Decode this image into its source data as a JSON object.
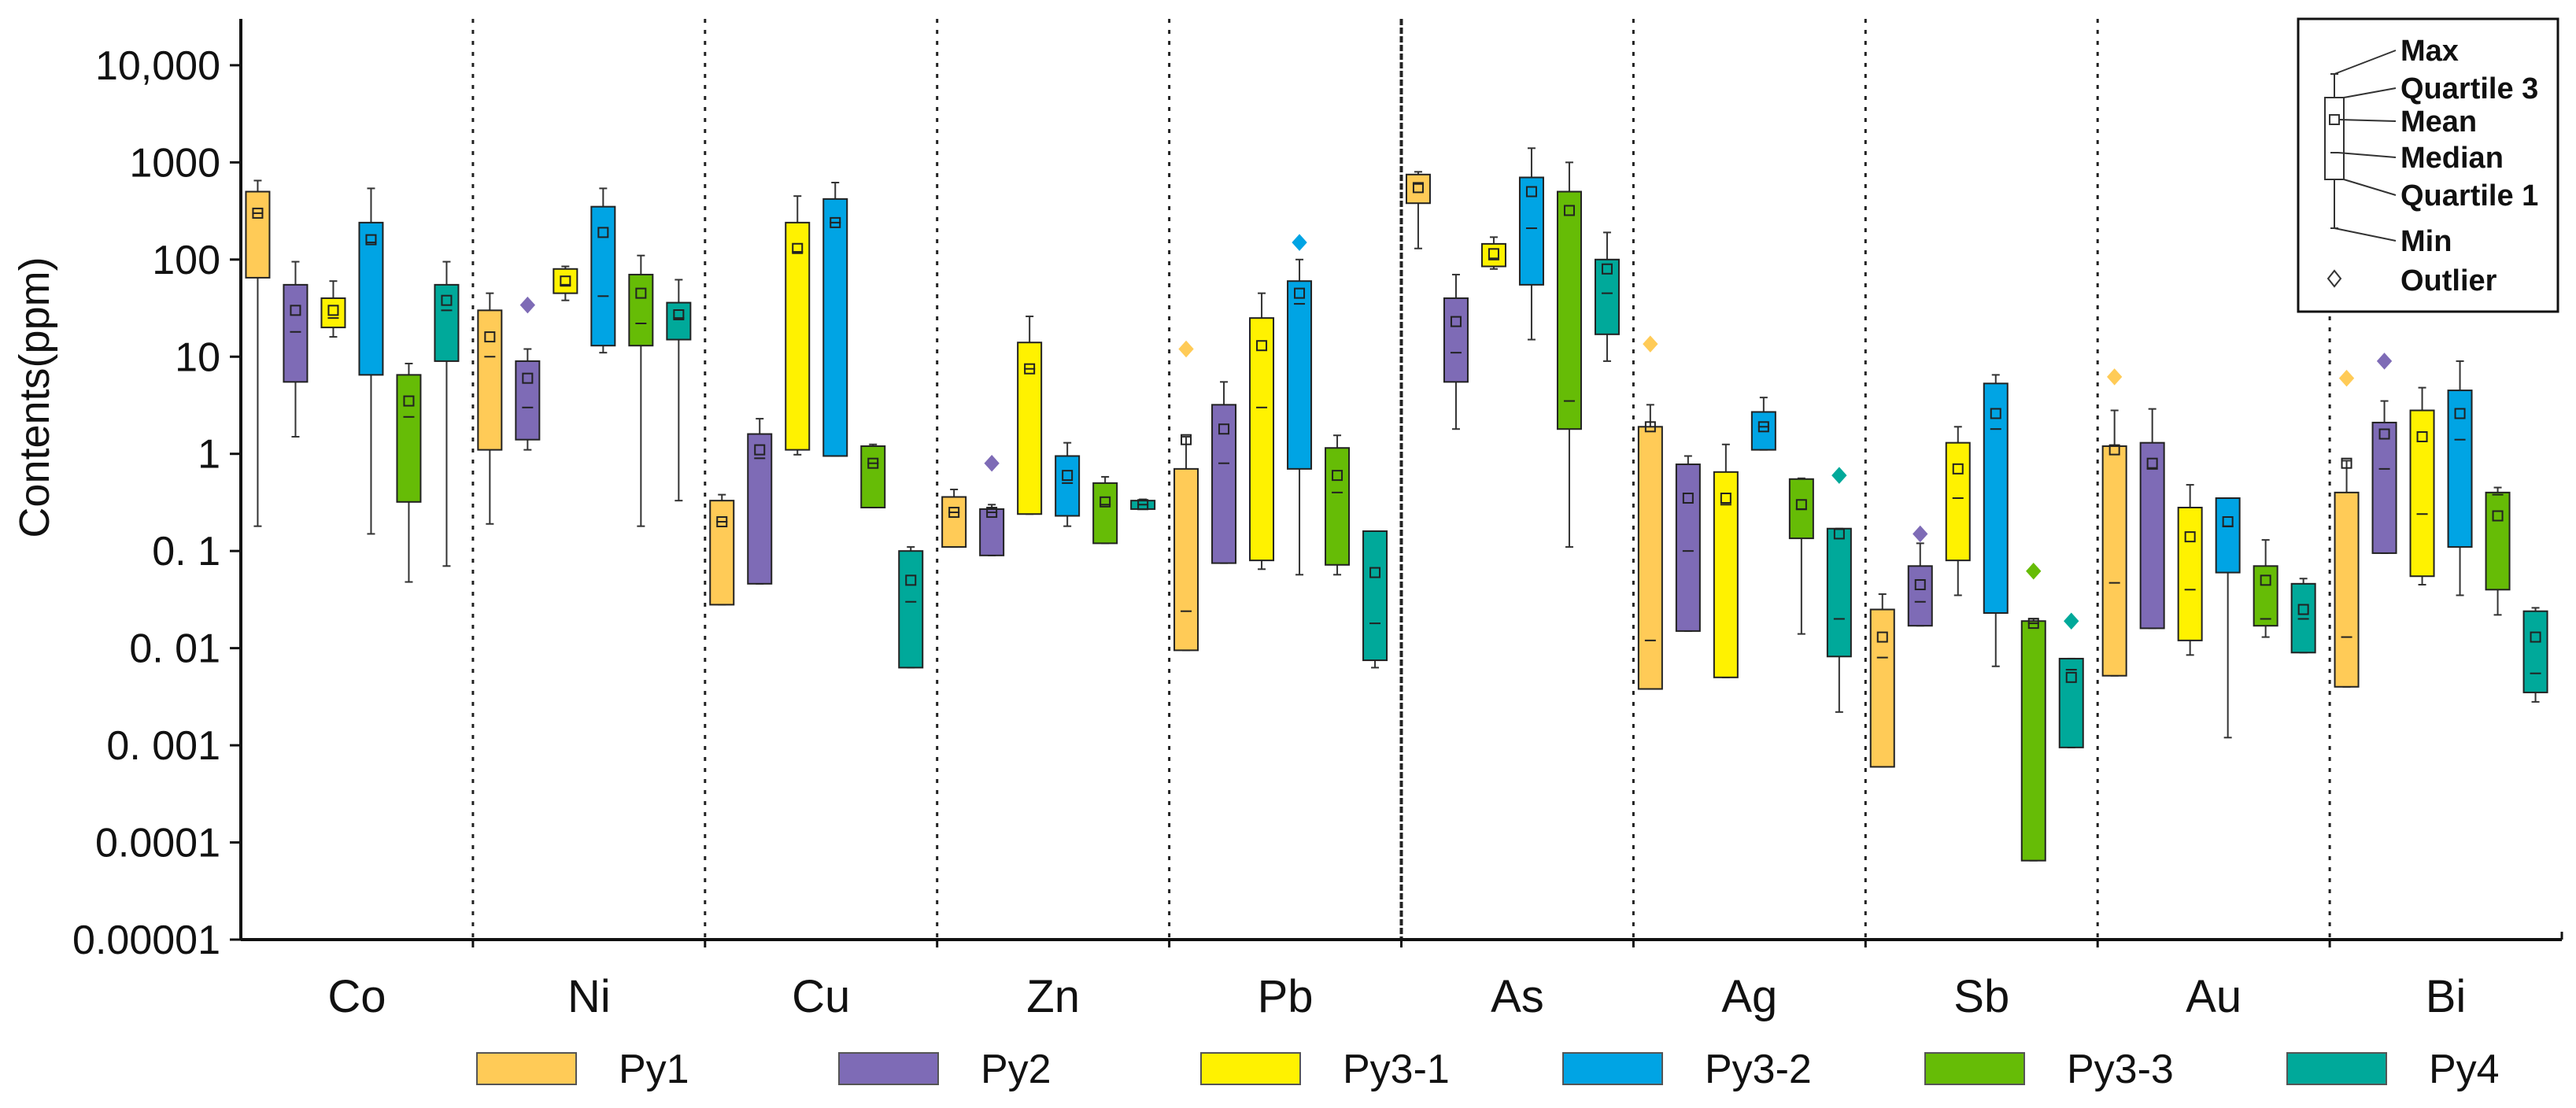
{
  "chart_data": {
    "type": "box",
    "ylabel": "Contents(ppm)",
    "yscale": "log",
    "ylim": [
      1e-05,
      30000
    ],
    "yticks": [
      {
        "value": 10000,
        "label": "10,000"
      },
      {
        "value": 1000,
        "label": "1000"
      },
      {
        "value": 100,
        "label": "100"
      },
      {
        "value": 10,
        "label": "10"
      },
      {
        "value": 1,
        "label": "1"
      },
      {
        "value": 0.1,
        "label": "0. 1"
      },
      {
        "value": 0.01,
        "label": "0. 01"
      },
      {
        "value": 0.001,
        "label": "0. 001"
      },
      {
        "value": 0.0001,
        "label": "0.0001"
      },
      {
        "value": 1e-05,
        "label": "0.00001"
      }
    ],
    "elements": [
      "Co",
      "Ni",
      "Cu",
      "Zn",
      "Pb",
      "As",
      "Ag",
      "Sb",
      "Au",
      "Bi"
    ],
    "series": [
      {
        "name": "Py1",
        "color": "#FFCB57"
      },
      {
        "name": "Py2",
        "color": "#7E6BB6"
      },
      {
        "name": "Py3-1",
        "color": "#FFF200"
      },
      {
        "name": "Py3-2",
        "color": "#00A4E4"
      },
      {
        "name": "Py3-3",
        "color": "#66BC06"
      },
      {
        "name": "Py4",
        "color": "#00A99A"
      }
    ],
    "groups": [
      {
        "element": "Co",
        "boxes": [
          {
            "series": "Py1",
            "min": 0.18,
            "q1": 65,
            "median": 300,
            "q3": 500,
            "max": 650,
            "mean": 300
          },
          {
            "series": "Py2",
            "min": 1.5,
            "q1": 5.5,
            "median": 18,
            "q3": 55,
            "max": 95,
            "mean": 30
          },
          {
            "series": "Py3-1",
            "min": 16,
            "q1": 20,
            "median": 25,
            "q3": 40,
            "max": 60,
            "mean": 30
          },
          {
            "series": "Py3-2",
            "min": 0.15,
            "q1": 6.5,
            "median": 150,
            "q3": 240,
            "max": 540,
            "mean": 160
          },
          {
            "series": "Py3-3",
            "min": 0.048,
            "q1": 0.32,
            "median": 2.4,
            "q3": 6.5,
            "max": 8.5,
            "mean": 3.5
          },
          {
            "series": "Py4",
            "min": 0.07,
            "q1": 9,
            "median": 30,
            "q3": 55,
            "max": 95,
            "mean": 38
          }
        ]
      },
      {
        "element": "Ni",
        "boxes": [
          {
            "series": "Py1",
            "min": 0.19,
            "q1": 1.1,
            "median": 10,
            "q3": 30,
            "max": 45,
            "mean": 16,
            "outliers": []
          },
          {
            "series": "Py2",
            "min": 1.1,
            "q1": 1.4,
            "median": 3,
            "q3": 9,
            "max": 12,
            "mean": 6,
            "outliers": [
              34
            ]
          },
          {
            "series": "Py3-1",
            "min": 38,
            "q1": 45,
            "median": 55,
            "q3": 80,
            "max": 85,
            "mean": 60
          },
          {
            "series": "Py3-2",
            "min": 11,
            "q1": 13,
            "median": 42,
            "q3": 350,
            "max": 540,
            "mean": 190
          },
          {
            "series": "Py3-3",
            "min": 0.18,
            "q1": 13,
            "median": 22,
            "q3": 70,
            "max": 110,
            "mean": 45
          },
          {
            "series": "Py4",
            "min": 0.33,
            "q1": 15,
            "median": 25,
            "q3": 36,
            "max": 62,
            "mean": 27
          }
        ]
      },
      {
        "element": "Cu",
        "boxes": [
          {
            "series": "Py1",
            "min": 0.028,
            "q1": 0.028,
            "median": 0.2,
            "q3": 0.33,
            "max": 0.38,
            "mean": 0.2
          },
          {
            "series": "Py2",
            "min": 0.046,
            "q1": 0.046,
            "median": 0.9,
            "q3": 1.6,
            "max": 2.3,
            "mean": 1.1
          },
          {
            "series": "Py3-1",
            "min": 0.98,
            "q1": 1.1,
            "median": 120,
            "q3": 240,
            "max": 450,
            "mean": 130
          },
          {
            "series": "Py3-2",
            "min": 0.95,
            "q1": 0.95,
            "median": 240,
            "q3": 420,
            "max": 620,
            "mean": 240
          },
          {
            "series": "Py3-3",
            "min": 0.28,
            "q1": 0.28,
            "median": 0.8,
            "q3": 1.2,
            "max": 1.25,
            "mean": 0.8
          },
          {
            "series": "Py4",
            "min": 0.0063,
            "q1": 0.0063,
            "median": 0.03,
            "q3": 0.1,
            "max": 0.11,
            "mean": 0.05
          }
        ]
      },
      {
        "element": "Zn",
        "boxes": [
          {
            "series": "Py1",
            "min": 0.11,
            "q1": 0.11,
            "median": 0.25,
            "q3": 0.36,
            "max": 0.43,
            "mean": 0.25
          },
          {
            "series": "Py2",
            "min": 0.09,
            "q1": 0.09,
            "median": 0.25,
            "q3": 0.27,
            "max": 0.3,
            "mean": 0.25,
            "outliers": [
              0.8
            ]
          },
          {
            "series": "Py3-1",
            "min": 0.24,
            "q1": 0.24,
            "median": 7.5,
            "q3": 14,
            "max": 26,
            "mean": 7.5
          },
          {
            "series": "Py3-2",
            "min": 0.18,
            "q1": 0.23,
            "median": 0.5,
            "q3": 0.95,
            "max": 1.3,
            "mean": 0.6
          },
          {
            "series": "Py3-3",
            "min": 0.12,
            "q1": 0.12,
            "median": 0.3,
            "q3": 0.5,
            "max": 0.58,
            "mean": 0.32
          },
          {
            "series": "Py4",
            "min": 0.27,
            "q1": 0.27,
            "median": 0.3,
            "q3": 0.33,
            "max": 0.34,
            "mean": 0.3
          }
        ]
      },
      {
        "element": "Pb",
        "boxes": [
          {
            "series": "Py1",
            "min": 0.0095,
            "q1": 0.0095,
            "median": 0.024,
            "q3": 0.7,
            "max": 1.5,
            "mean": 1.4,
            "outliers": [
              12
            ]
          },
          {
            "series": "Py2",
            "min": 0.075,
            "q1": 0.075,
            "median": 0.8,
            "q3": 3.2,
            "max": 5.5,
            "mean": 1.8
          },
          {
            "series": "Py3-1",
            "min": 0.065,
            "q1": 0.08,
            "median": 3,
            "q3": 25,
            "max": 45,
            "mean": 13
          },
          {
            "series": "Py3-2",
            "min": 0.057,
            "q1": 0.7,
            "median": 35,
            "q3": 60,
            "max": 100,
            "mean": 45,
            "outliers": [
              150
            ]
          },
          {
            "series": "Py3-3",
            "min": 0.057,
            "q1": 0.072,
            "median": 0.4,
            "q3": 1.15,
            "max": 1.55,
            "mean": 0.6
          },
          {
            "series": "Py4",
            "min": 0.0063,
            "q1": 0.0075,
            "median": 0.018,
            "q3": 0.16,
            "max": 0.16,
            "mean": 0.06
          }
        ]
      },
      {
        "element": "As",
        "boxes": [
          {
            "series": "Py1",
            "min": 130,
            "q1": 380,
            "median": 600,
            "q3": 750,
            "max": 800,
            "mean": 550
          },
          {
            "series": "Py2",
            "min": 1.8,
            "q1": 5.5,
            "median": 11,
            "q3": 40,
            "max": 70,
            "mean": 23
          },
          {
            "series": "Py3-1",
            "min": 80,
            "q1": 85,
            "median": 100,
            "q3": 145,
            "max": 170,
            "mean": 115
          },
          {
            "series": "Py3-2",
            "min": 15,
            "q1": 55,
            "median": 210,
            "q3": 700,
            "max": 1400,
            "mean": 500
          },
          {
            "series": "Py3-3",
            "min": 0.11,
            "q1": 1.8,
            "median": 3.5,
            "q3": 500,
            "max": 1000,
            "mean": 320
          },
          {
            "series": "Py4",
            "min": 9,
            "q1": 17,
            "median": 45,
            "q3": 100,
            "max": 190,
            "mean": 80
          }
        ]
      },
      {
        "element": "Ag",
        "boxes": [
          {
            "series": "Py1",
            "min": 0.0038,
            "q1": 0.0038,
            "median": 0.012,
            "q3": 1.9,
            "max": 3.2,
            "mean": 1.9,
            "outliers": [
              13.5
            ]
          },
          {
            "series": "Py2",
            "min": 0.015,
            "q1": 0.015,
            "median": 0.1,
            "q3": 0.78,
            "max": 0.95,
            "mean": 0.35
          },
          {
            "series": "Py3-1",
            "min": 0.005,
            "q1": 0.005,
            "median": 0.3,
            "q3": 0.65,
            "max": 1.25,
            "mean": 0.35
          },
          {
            "series": "Py3-2",
            "min": 1.1,
            "q1": 1.1,
            "median": 1.9,
            "q3": 2.7,
            "max": 3.8,
            "mean": 1.9
          },
          {
            "series": "Py3-3",
            "min": 0.014,
            "q1": 0.135,
            "median": 0.27,
            "q3": 0.55,
            "max": 0.56,
            "mean": 0.3
          },
          {
            "series": "Py4",
            "min": 0.0022,
            "q1": 0.0082,
            "median": 0.02,
            "q3": 0.17,
            "max": 0.17,
            "mean": 0.15,
            "outliers": [
              0.6
            ]
          }
        ]
      },
      {
        "element": "Sb",
        "boxes": [
          {
            "series": "Py1",
            "min": 0.0006,
            "q1": 0.0006,
            "median": 0.008,
            "q3": 0.025,
            "max": 0.036,
            "mean": 0.013
          },
          {
            "series": "Py2",
            "min": 0.017,
            "q1": 0.017,
            "median": 0.03,
            "q3": 0.07,
            "max": 0.12,
            "mean": 0.045,
            "outliers": [
              0.15
            ]
          },
          {
            "series": "Py3-1",
            "min": 0.035,
            "q1": 0.08,
            "median": 0.35,
            "q3": 1.3,
            "max": 1.9,
            "mean": 0.7
          },
          {
            "series": "Py3-2",
            "min": 0.0065,
            "q1": 0.023,
            "median": 1.8,
            "q3": 5.3,
            "max": 6.5,
            "mean": 2.6
          },
          {
            "series": "Py3-3",
            "min": 6.5e-05,
            "q1": 6.5e-05,
            "median": 0.018,
            "q3": 0.019,
            "max": 0.02,
            "mean": 0.018,
            "outliers": [
              0.062
            ]
          },
          {
            "series": "Py4",
            "min": 0.00095,
            "q1": 0.00095,
            "median": 0.006,
            "q3": 0.0078,
            "max": 0.0078,
            "mean": 0.005,
            "outliers": [
              0.019
            ]
          }
        ]
      },
      {
        "element": "Au",
        "boxes": [
          {
            "series": "Py1",
            "min": 0.0052,
            "q1": 0.0052,
            "median": 0.047,
            "q3": 1.2,
            "max": 2.8,
            "mean": 1.1,
            "outliers": [
              6.2
            ]
          },
          {
            "series": "Py2",
            "min": 0.016,
            "q1": 0.016,
            "median": 0.7,
            "q3": 1.3,
            "max": 2.9,
            "mean": 0.8
          },
          {
            "series": "Py3-1",
            "min": 0.0085,
            "q1": 0.012,
            "median": 0.04,
            "q3": 0.28,
            "max": 0.48,
            "mean": 0.14
          },
          {
            "series": "Py3-2",
            "min": 0.0012,
            "q1": 0.06,
            "median": 0.18,
            "q3": 0.35,
            "max": 0.35,
            "mean": 0.2
          },
          {
            "series": "Py3-3",
            "min": 0.013,
            "q1": 0.017,
            "median": 0.02,
            "q3": 0.07,
            "max": 0.13,
            "mean": 0.05
          },
          {
            "series": "Py4",
            "min": 0.009,
            "q1": 0.009,
            "median": 0.02,
            "q3": 0.046,
            "max": 0.052,
            "mean": 0.025
          }
        ]
      },
      {
        "element": "Bi",
        "boxes": [
          {
            "series": "Py1",
            "min": 0.004,
            "q1": 0.004,
            "median": 0.013,
            "q3": 0.4,
            "max": 0.85,
            "mean": 0.8,
            "outliers": [
              6
            ]
          },
          {
            "series": "Py2",
            "min": 0.095,
            "q1": 0.095,
            "median": 0.7,
            "q3": 2.1,
            "max": 3.5,
            "mean": 1.6,
            "outliers": [
              9
            ]
          },
          {
            "series": "Py3-1",
            "min": 0.045,
            "q1": 0.055,
            "median": 0.24,
            "q3": 2.8,
            "max": 4.8,
            "mean": 1.5
          },
          {
            "series": "Py3-2",
            "min": 0.035,
            "q1": 0.11,
            "median": 1.4,
            "q3": 4.5,
            "max": 9,
            "mean": 2.6
          },
          {
            "series": "Py3-3",
            "min": 0.022,
            "q1": 0.04,
            "median": 0.38,
            "q3": 0.4,
            "max": 0.45,
            "mean": 0.23
          },
          {
            "series": "Py4",
            "min": 0.0028,
            "q1": 0.0035,
            "median": 0.0055,
            "q3": 0.024,
            "max": 0.026,
            "mean": 0.013
          }
        ]
      }
    ],
    "box_key": {
      "labels": [
        "Max",
        "Quartile 3",
        "Mean",
        "Median",
        "Quartile 1",
        "Min",
        "Outlier"
      ]
    }
  }
}
